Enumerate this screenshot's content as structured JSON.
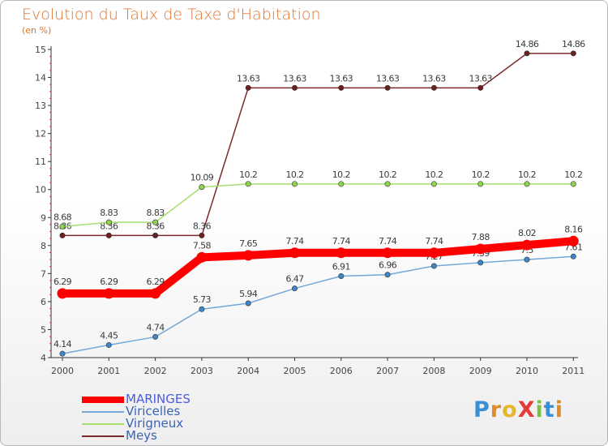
{
  "title": "Evolution du Taux de Taxe d'Habitation",
  "subtitle": "(en %)",
  "logo": {
    "text": "ProXiti",
    "letters": [
      "P",
      "r",
      "o",
      "X",
      "i",
      "t",
      "i"
    ],
    "colors": [
      "#3a8fd6",
      "#e08a2a",
      "#e8b52a",
      "#e33b3b",
      "#7cc242",
      "#3a8fd6",
      "#e08a2a"
    ]
  },
  "chart_data": {
    "type": "line",
    "categories": [
      "2000",
      "2001",
      "2002",
      "2003",
      "2004",
      "2005",
      "2006",
      "2007",
      "2008",
      "2009",
      "2010",
      "2011"
    ],
    "ylim": [
      4,
      15
    ],
    "yticks": [
      "4",
      "5",
      "6",
      "7",
      "8",
      "9",
      "10",
      "11",
      "12",
      "13",
      "14",
      "15"
    ],
    "grid": false,
    "legend_position": "bottom-left",
    "series": [
      {
        "name": "Meys",
        "color": "#7a2a2a",
        "marker": "#6b1f1f",
        "values": [
          8.36,
          8.36,
          8.36,
          8.36,
          13.63,
          13.63,
          13.63,
          13.63,
          13.63,
          13.63,
          14.86,
          14.86
        ],
        "labels": [
          "8.36",
          "8.36",
          "8.36",
          "8.36",
          "13.63",
          "13.63",
          "13.63",
          "13.63",
          "13.63",
          "13.63",
          "14.86",
          "14.86"
        ]
      },
      {
        "name": "Virigneux",
        "color": "#a6df6e",
        "marker": "#8fd44f",
        "values": [
          8.68,
          8.83,
          8.83,
          10.09,
          10.2,
          10.2,
          10.2,
          10.2,
          10.2,
          10.2,
          10.2,
          10.2
        ],
        "labels": [
          "8.68",
          "8.83",
          "8.83",
          "10.09",
          "10.2",
          "10.2",
          "10.2",
          "10.2",
          "10.2",
          "10.2",
          "10.2",
          "10.2"
        ]
      },
      {
        "name": "Viricelles",
        "color": "#74a8d8",
        "marker": "#3f86c8",
        "values": [
          4.14,
          4.45,
          4.74,
          5.73,
          5.94,
          6.47,
          6.91,
          6.96,
          7.27,
          7.39,
          7.5,
          7.61
        ],
        "labels": [
          "4.14",
          "4.45",
          "4.74",
          "5.73",
          "5.94",
          "6.47",
          "6.91",
          "6.96",
          "7.27",
          "7.39",
          "7.5",
          "7.61"
        ]
      },
      {
        "name": "MARINGES",
        "color": "#ff0000",
        "marker": "#ff0000",
        "values": [
          6.29,
          6.29,
          6.29,
          7.58,
          7.65,
          7.74,
          7.74,
          7.74,
          7.74,
          7.88,
          8.02,
          8.16
        ],
        "labels": [
          "6.29",
          "6.29",
          "6.29",
          "7.58",
          "7.65",
          "7.74",
          "7.74",
          "7.74",
          "7.74",
          "7.88",
          "8.02",
          "8.16"
        ]
      }
    ],
    "legend": [
      {
        "name": "MARINGES",
        "color": "#ff0000",
        "text_color": "#4a5ee0"
      },
      {
        "name": "Viricelles",
        "color": "#74a8d8",
        "text_color": "#3a63b8"
      },
      {
        "name": "Virigneux",
        "color": "#a6df6e",
        "text_color": "#3a63b8"
      },
      {
        "name": "Meys",
        "color": "#7a2a2a",
        "text_color": "#3a63b8"
      }
    ]
  }
}
